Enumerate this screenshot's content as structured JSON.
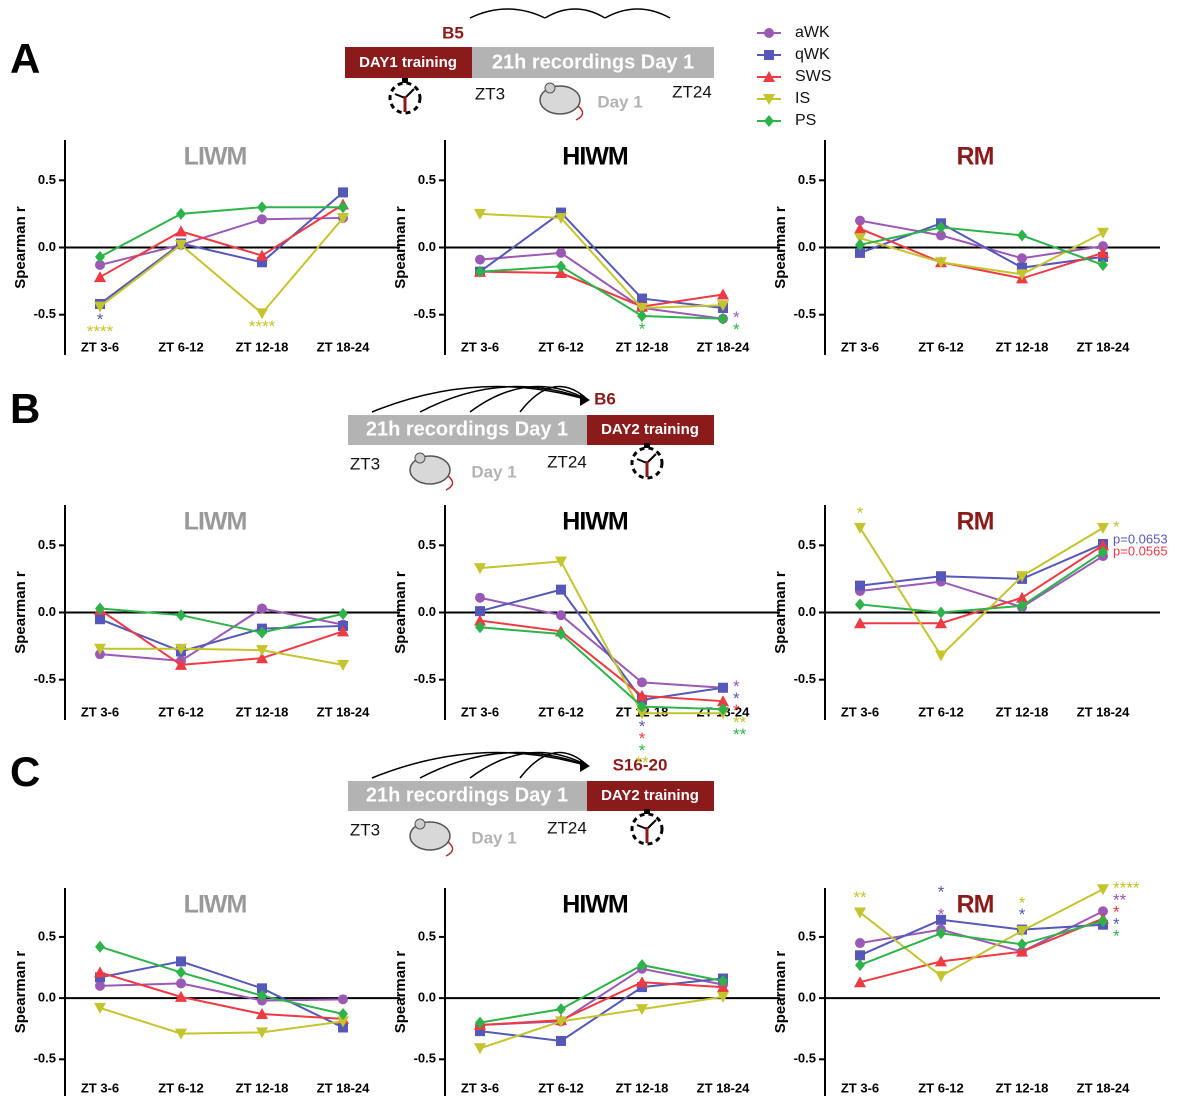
{
  "legend": [
    {
      "name": "aWK",
      "color": "#9b59b6",
      "marker": "circle"
    },
    {
      "name": "qWK",
      "color": "#5558b8",
      "marker": "square"
    },
    {
      "name": "SWS",
      "color": "#ee3a43",
      "marker": "triangle-up"
    },
    {
      "name": "IS",
      "color": "#c4c42e",
      "marker": "triangle-down"
    },
    {
      "name": "PS",
      "color": "#2db34a",
      "marker": "diamond"
    }
  ],
  "panels": [
    {
      "letter": "A",
      "schematic": {
        "marker": "B5",
        "training": "DAY1 training",
        "recording": "21h recordings Day 1",
        "zt_start": "ZT3",
        "day": "Day 1",
        "zt_end": "ZT24"
      }
    },
    {
      "letter": "B",
      "schematic": {
        "marker": "B6",
        "training": "DAY2 training",
        "recording": "21h recordings Day 1",
        "zt_start": "ZT3",
        "day": "Day 1",
        "zt_end": "ZT24"
      }
    },
    {
      "letter": "C",
      "schematic": {
        "marker": "S16-20",
        "training": "DAY2 training",
        "recording": "21h recordings Day 1",
        "zt_start": "ZT3",
        "day": "Day 1",
        "zt_end": "ZT24"
      }
    }
  ],
  "chart_data": [
    {
      "type": "line",
      "title": "LIWM",
      "title_color": "#999999",
      "ylabel": "Spearman r",
      "categories": [
        "ZT 3-6",
        "ZT 6-12",
        "ZT 12-18",
        "ZT 18-24"
      ],
      "ylim": [
        -0.8,
        0.8
      ],
      "yticks": [
        -0.5,
        {
          "value": 0,
          "label": "0.0"
        },
        0.5
      ],
      "series": [
        {
          "values": [
            -0.13,
            0.02,
            0.21,
            0.22
          ]
        },
        {
          "values": [
            -0.42,
            0.03,
            -0.11,
            0.41
          ]
        },
        {
          "values": [
            -0.22,
            0.12,
            -0.06,
            0.32
          ]
        },
        {
          "values": [
            -0.44,
            0.02,
            -0.49,
            0.22
          ]
        },
        {
          "values": [
            -0.07,
            0.25,
            0.3,
            0.3
          ]
        }
      ],
      "annotations": [
        {
          "text": "*",
          "series": 1,
          "category": 0
        },
        {
          "text": "****",
          "series": 3,
          "category": 0
        },
        {
          "text": "****",
          "series": 3,
          "category": 2
        }
      ]
    },
    {
      "type": "line",
      "title": "HIWM",
      "title_color": "#000000",
      "ylabel": "Spearman r",
      "categories": [
        "ZT 3-6",
        "ZT 6-12",
        "ZT 12-18",
        "ZT 18-24"
      ],
      "ylim": [
        -0.8,
        0.8
      ],
      "yticks": [
        -0.5,
        {
          "value": 0,
          "label": "0.0"
        },
        0.5
      ],
      "series": [
        {
          "values": [
            -0.09,
            -0.04,
            -0.45,
            -0.53
          ]
        },
        {
          "values": [
            -0.18,
            0.26,
            -0.38,
            -0.45
          ]
        },
        {
          "values": [
            -0.18,
            -0.19,
            -0.44,
            -0.35
          ]
        },
        {
          "values": [
            0.25,
            0.22,
            -0.45,
            -0.43
          ]
        },
        {
          "values": [
            -0.18,
            -0.14,
            -0.51,
            -0.53
          ]
        }
      ],
      "annotations": [
        {
          "text": "*",
          "series": 4,
          "category": 2
        },
        {
          "text": "*",
          "series": 0,
          "category": 3
        },
        {
          "text": "*",
          "series": 4,
          "category": 3
        }
      ]
    },
    {
      "type": "line",
      "title": "RM",
      "title_color": "#8b1a1a",
      "ylabel": "Spearman r",
      "categories": [
        "ZT 3-6",
        "ZT 6-12",
        "ZT 12-18",
        "ZT 18-24"
      ],
      "ylim": [
        -0.8,
        0.8
      ],
      "yticks": [
        -0.5,
        {
          "value": 0,
          "label": "0.0"
        },
        0.5
      ],
      "series": [
        {
          "values": [
            0.2,
            0.09,
            -0.08,
            0.01
          ]
        },
        {
          "values": [
            -0.04,
            0.18,
            -0.15,
            -0.07
          ]
        },
        {
          "values": [
            0.14,
            -0.11,
            -0.23,
            -0.04
          ]
        },
        {
          "values": [
            0.07,
            -0.11,
            -0.2,
            0.11
          ]
        },
        {
          "values": [
            0.02,
            0.15,
            0.09,
            -0.13
          ]
        }
      ],
      "annotations": []
    },
    {
      "type": "line",
      "title": "LIWM",
      "title_color": "#999999",
      "ylabel": "Spearman r",
      "categories": [
        "ZT 3-6",
        "ZT 6-12",
        "ZT 12-18",
        "ZT 18-24"
      ],
      "ylim": [
        -0.8,
        0.8
      ],
      "yticks": [
        -0.5,
        {
          "value": 0,
          "label": "0.0"
        },
        0.5
      ],
      "series": [
        {
          "values": [
            -0.31,
            -0.36,
            0.03,
            -0.09
          ]
        },
        {
          "values": [
            -0.05,
            -0.29,
            -0.12,
            -0.1
          ]
        },
        {
          "values": [
            0.02,
            -0.39,
            -0.34,
            -0.14
          ]
        },
        {
          "values": [
            -0.27,
            -0.27,
            -0.28,
            -0.39
          ]
        },
        {
          "values": [
            0.03,
            -0.02,
            -0.15,
            -0.01
          ]
        }
      ],
      "annotations": []
    },
    {
      "type": "line",
      "title": "HIWM",
      "title_color": "#000000",
      "ylabel": "Spearman r",
      "categories": [
        "ZT 3-6",
        "ZT 6-12",
        "ZT 12-18",
        "ZT 18-24"
      ],
      "ylim": [
        -0.8,
        0.8
      ],
      "yticks": [
        -0.5,
        {
          "value": 0,
          "label": "0.0"
        },
        0.5
      ],
      "series": [
        {
          "values": [
            0.11,
            -0.02,
            -0.52,
            -0.56
          ]
        },
        {
          "values": [
            0.01,
            0.17,
            -0.65,
            -0.56
          ]
        },
        {
          "values": [
            -0.06,
            -0.14,
            -0.62,
            -0.66
          ]
        },
        {
          "values": [
            0.33,
            0.38,
            -0.75,
            -0.75
          ]
        },
        {
          "values": [
            -0.11,
            -0.16,
            -0.7,
            -0.72
          ]
        }
      ],
      "annotations": [
        {
          "text": "*",
          "series": 1,
          "category": 2
        },
        {
          "text": "*",
          "series": 2,
          "category": 2
        },
        {
          "text": "*",
          "series": 4,
          "category": 2
        },
        {
          "text": "**",
          "series": 3,
          "category": 2
        },
        {
          "text": "*",
          "series": 0,
          "category": 3
        },
        {
          "text": "*",
          "series": 1,
          "category": 3
        },
        {
          "text": "*",
          "series": 2,
          "category": 3
        },
        {
          "text": "**",
          "series": 3,
          "category": 3
        },
        {
          "text": "**",
          "series": 4,
          "category": 3
        }
      ]
    },
    {
      "type": "line",
      "title": "RM",
      "title_color": "#8b1a1a",
      "ylabel": "Spearman r",
      "categories": [
        "ZT 3-6",
        "ZT 6-12",
        "ZT 12-18",
        "ZT 18-24"
      ],
      "ylim": [
        -0.8,
        0.8
      ],
      "yticks": [
        -0.5,
        {
          "value": 0,
          "label": "0.0"
        },
        0.5
      ],
      "series": [
        {
          "values": [
            0.16,
            0.23,
            0.04,
            0.42
          ]
        },
        {
          "values": [
            0.2,
            0.27,
            0.25,
            0.51
          ]
        },
        {
          "values": [
            -0.08,
            -0.08,
            0.11,
            0.5
          ]
        },
        {
          "values": [
            0.63,
            -0.32,
            0.27,
            0.63
          ]
        },
        {
          "values": [
            0.06,
            0,
            0.05,
            0.45
          ]
        }
      ],
      "annotations": [
        {
          "text": "*",
          "series": 3,
          "category": 0
        },
        {
          "text": "*",
          "series": 3,
          "category": 3
        },
        {
          "text": "p=0.0653",
          "series": 1,
          "category": 3
        },
        {
          "text": "p=0.0565",
          "series": 2,
          "category": 3
        }
      ]
    },
    {
      "type": "line",
      "title": "LIWM",
      "title_color": "#999999",
      "ylabel": "Spearman r",
      "categories": [
        "ZT 3-6",
        "ZT 6-12",
        "ZT 12-18",
        "ZT 18-24"
      ],
      "ylim": [
        -0.8,
        0.9
      ],
      "yticks": [
        -0.5,
        {
          "value": 0,
          "label": "0.0"
        },
        0.5
      ],
      "series": [
        {
          "values": [
            0.1,
            0.12,
            -0.02,
            -0.01
          ]
        },
        {
          "values": [
            0.17,
            0.3,
            0.08,
            -0.24
          ]
        },
        {
          "values": [
            0.21,
            0.01,
            -0.13,
            -0.17
          ]
        },
        {
          "values": [
            -0.08,
            -0.29,
            -0.28,
            -0.19
          ]
        },
        {
          "values": [
            0.42,
            0.21,
            0.02,
            -0.13
          ]
        }
      ],
      "annotations": []
    },
    {
      "type": "line",
      "title": "HIWM",
      "title_color": "#000000",
      "ylabel": "Spearman r",
      "categories": [
        "ZT 3-6",
        "ZT 6-12",
        "ZT 12-18",
        "ZT 18-24"
      ],
      "ylim": [
        -0.8,
        0.9
      ],
      "yticks": [
        -0.5,
        {
          "value": 0,
          "label": "0.0"
        },
        0.5
      ],
      "series": [
        {
          "values": [
            -0.22,
            -0.19,
            0.24,
            0.11
          ]
        },
        {
          "values": [
            -0.27,
            -0.35,
            0.09,
            0.16
          ]
        },
        {
          "values": [
            -0.22,
            -0.18,
            0.13,
            0.09
          ]
        },
        {
          "values": [
            -0.41,
            -0.19,
            -0.09,
            0.01
          ]
        },
        {
          "values": [
            -0.2,
            -0.09,
            0.27,
            0.14
          ]
        }
      ],
      "annotations": []
    },
    {
      "type": "line",
      "title": "RM",
      "title_color": "#8b1a1a",
      "ylabel": "Spearman r",
      "categories": [
        "ZT 3-6",
        "ZT 6-12",
        "ZT 12-18",
        "ZT 18-24"
      ],
      "ylim": [
        -0.8,
        0.9
      ],
      "yticks": [
        -0.5,
        {
          "value": 0,
          "label": "0.0"
        },
        0.5
      ],
      "series": [
        {
          "values": [
            0.45,
            0.56,
            0.38,
            0.71
          ]
        },
        {
          "values": [
            0.35,
            0.64,
            0.56,
            0.6
          ]
        },
        {
          "values": [
            0.13,
            0.3,
            0.38,
            0.65
          ]
        },
        {
          "values": [
            0.7,
            0.18,
            0.55,
            0.89
          ]
        },
        {
          "values": [
            0.27,
            0.53,
            0.44,
            0.63
          ]
        }
      ],
      "annotations": [
        {
          "text": "**",
          "series": 3,
          "category": 0
        },
        {
          "text": "*",
          "series": 0,
          "category": 1
        },
        {
          "text": "*",
          "series": 1,
          "category": 1
        },
        {
          "text": "*",
          "series": 1,
          "category": 2
        },
        {
          "text": "*",
          "series": 3,
          "category": 2
        },
        {
          "text": "****",
          "series": 3,
          "category": 3
        },
        {
          "text": "**",
          "series": 0,
          "category": 3
        },
        {
          "text": "*",
          "series": 2,
          "category": 3
        },
        {
          "text": "*",
          "series": 1,
          "category": 3
        },
        {
          "text": "*",
          "series": 4,
          "category": 3
        }
      ]
    }
  ]
}
